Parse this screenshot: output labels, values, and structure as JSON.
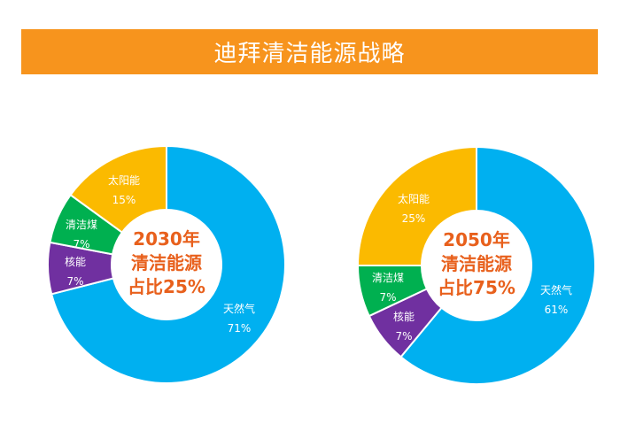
{
  "header": {
    "title": "迪拜清洁能源战略"
  },
  "colors": {
    "title_bg": "#f7941d",
    "center_text": "#e8601c",
    "natural_gas": "#00b0f0",
    "nuclear": "#7030a0",
    "clean_coal": "#00b050",
    "solar": "#fbba00"
  },
  "chart_data": [
    {
      "type": "pie",
      "donut": true,
      "center_text": [
        "2030年",
        "清洁能源",
        "占比25%"
      ],
      "slices": [
        {
          "label": "天然气",
          "value": 71,
          "value_label": "71%",
          "color": "#00b0f0"
        },
        {
          "label": "核能",
          "value": 7,
          "value_label": "7%",
          "color": "#7030a0"
        },
        {
          "label": "清洁煤",
          "value": 7,
          "value_label": "7%",
          "color": "#00b050"
        },
        {
          "label": "太阳能",
          "value": 15,
          "value_label": "15%",
          "color": "#fbba00"
        }
      ]
    },
    {
      "type": "pie",
      "donut": true,
      "center_text": [
        "2050年",
        "清洁能源",
        "占比75%"
      ],
      "slices": [
        {
          "label": "天然气",
          "value": 61,
          "value_label": "61%",
          "color": "#00b0f0"
        },
        {
          "label": "核能",
          "value": 7,
          "value_label": "7%",
          "color": "#7030a0"
        },
        {
          "label": "清洁煤",
          "value": 7,
          "value_label": "7%",
          "color": "#00b050"
        },
        {
          "label": "太阳能",
          "value": 25,
          "value_label": "25%",
          "color": "#fbba00"
        }
      ]
    }
  ]
}
